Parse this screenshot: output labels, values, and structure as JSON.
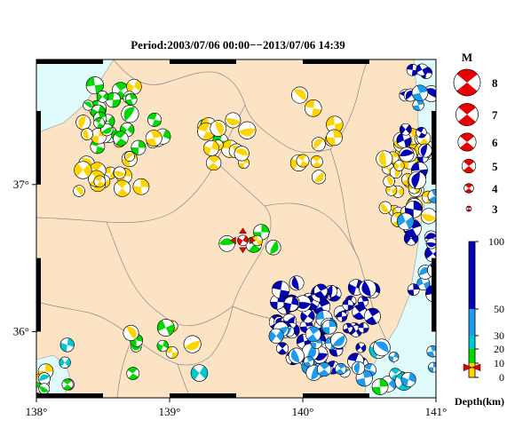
{
  "title": "Period:2003/07/06 00:00−−2013/07/06 14:39",
  "x_ticks": [
    {
      "value": 138,
      "label": "138°"
    },
    {
      "value": 139,
      "label": "139°"
    },
    {
      "value": 140,
      "label": "140°"
    },
    {
      "value": 141,
      "label": "141°"
    }
  ],
  "y_ticks": [
    {
      "value": 37,
      "label": "37°"
    },
    {
      "value": 36,
      "label": "36°"
    }
  ],
  "magnitude_legend": {
    "title": "M",
    "items": [
      {
        "label": "8",
        "m": 8
      },
      {
        "label": "7",
        "m": 7
      },
      {
        "label": "6",
        "m": 6
      },
      {
        "label": "5",
        "m": 5
      },
      {
        "label": "4",
        "m": 4
      },
      {
        "label": "3",
        "m": 3
      }
    ]
  },
  "depth_legend": {
    "title": "Depth(km)",
    "ticks": [
      {
        "value": 100,
        "label": "100"
      },
      {
        "value": 50,
        "label": "50"
      },
      {
        "value": 30,
        "label": "30"
      },
      {
        "value": 20,
        "label": "20"
      },
      {
        "value": 10,
        "label": "10"
      },
      {
        "value": 0,
        "label": "0"
      }
    ],
    "bands": [
      {
        "from": 0,
        "to": 10,
        "color": "#ffd400"
      },
      {
        "from": 10,
        "to": 20,
        "color": "#00d800"
      },
      {
        "from": 20,
        "to": 30,
        "color": "#00c8d2"
      },
      {
        "from": 30,
        "to": 50,
        "color": "#1e9bef"
      },
      {
        "from": 50,
        "to": 100,
        "color": "#0000b4"
      }
    ],
    "marker_depth": 7
  },
  "colors": {
    "land": "#fbe3c3",
    "sea": "#dffbfc",
    "highlight": "#e80000"
  },
  "map_extent": {
    "lon": [
      138,
      141
    ],
    "lat": [
      35.55,
      37.85
    ]
  },
  "clusters": [
    {
      "lon": [
        138.35,
        138.95
      ],
      "lat": [
        37.25,
        37.75
      ],
      "n": 30,
      "depth": [
        8,
        18
      ]
    },
    {
      "lon": [
        138.3,
        138.8
      ],
      "lat": [
        36.95,
        37.2
      ],
      "n": 18,
      "depth": [
        0,
        10
      ]
    },
    {
      "lon": [
        139.25,
        139.65
      ],
      "lat": [
        37.1,
        37.45
      ],
      "n": 14,
      "depth": [
        0,
        12
      ]
    },
    {
      "lon": [
        139.95,
        140.25
      ],
      "lat": [
        37.05,
        37.75
      ],
      "n": 10,
      "depth": [
        0,
        8
      ]
    },
    {
      "lon": [
        140.6,
        140.95
      ],
      "lat": [
        36.75,
        37.35
      ],
      "n": 40,
      "depth": [
        0,
        10
      ]
    },
    {
      "lon": [
        140.75,
        141.0
      ],
      "lat": [
        36.2,
        37.8
      ],
      "n": 30,
      "depth": [
        40,
        95
      ]
    },
    {
      "lon": [
        139.8,
        140.55
      ],
      "lat": [
        35.75,
        36.35
      ],
      "n": 55,
      "depth": [
        50,
        100
      ]
    },
    {
      "lon": [
        139.8,
        140.35
      ],
      "lat": [
        35.7,
        36.1
      ],
      "n": 20,
      "depth": [
        30,
        50
      ]
    },
    {
      "lon": [
        140.4,
        141.0
      ],
      "lat": [
        35.6,
        35.95
      ],
      "n": 14,
      "depth": [
        10,
        50
      ]
    },
    {
      "lon": [
        138.0,
        138.25
      ],
      "lat": [
        35.6,
        35.95
      ],
      "n": 10,
      "depth": [
        8,
        25
      ]
    },
    {
      "lon": [
        138.7,
        139.3
      ],
      "lat": [
        35.7,
        36.05
      ],
      "n": 10,
      "depth": [
        0,
        25
      ]
    },
    {
      "lon": [
        139.4,
        139.8
      ],
      "lat": [
        36.5,
        36.7
      ],
      "n": 5,
      "depth": [
        5,
        15
      ]
    }
  ],
  "mainshock": {
    "lon": 139.55,
    "lat": 36.62,
    "depth": 7
  }
}
